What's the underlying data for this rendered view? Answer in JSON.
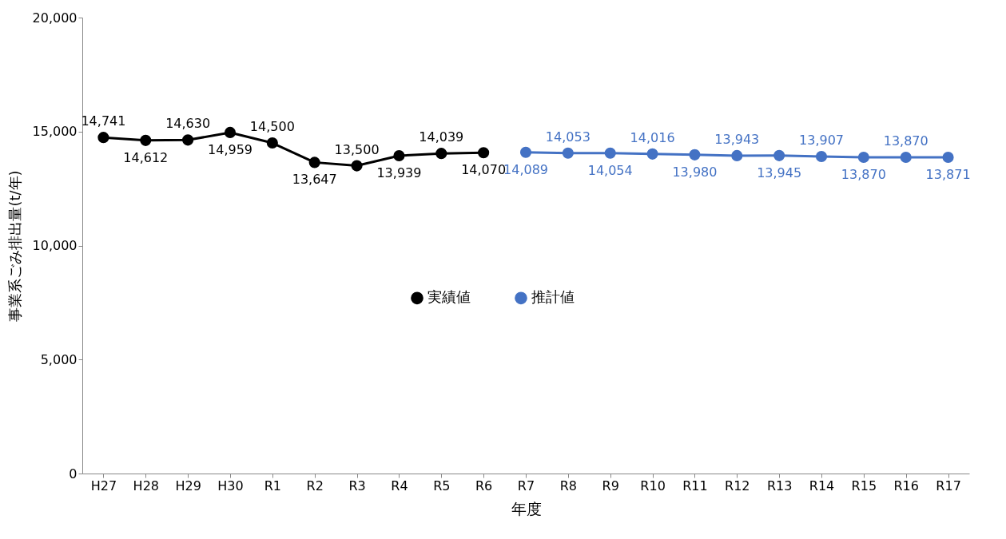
{
  "chart_data": {
    "type": "line",
    "xlabel": "年度",
    "ylabel": "事業系ごみ排出量(t/年)",
    "categories": [
      "H27",
      "H28",
      "H29",
      "H30",
      "R1",
      "R2",
      "R3",
      "R4",
      "R5",
      "R6",
      "R7",
      "R8",
      "R9",
      "R10",
      "R11",
      "R12",
      "R13",
      "R14",
      "R15",
      "R16",
      "R17"
    ],
    "series": [
      {
        "name": "実績値",
        "color": "#000000",
        "values": [
          14741,
          14612,
          14630,
          14959,
          14500,
          13647,
          13500,
          13939,
          14039,
          14070,
          null,
          null,
          null,
          null,
          null,
          null,
          null,
          null,
          null,
          null,
          null
        ],
        "value_labels": [
          "14,741",
          "14,612",
          "14,630",
          "14,959",
          "14,500",
          "13,647",
          "13,500",
          "13,939",
          "14,039",
          "14,070",
          null,
          null,
          null,
          null,
          null,
          null,
          null,
          null,
          null,
          null,
          null
        ]
      },
      {
        "name": "推計値",
        "color": "#4472c4",
        "values": [
          null,
          null,
          null,
          null,
          null,
          null,
          null,
          null,
          null,
          null,
          14089,
          14053,
          14054,
          14016,
          13980,
          13943,
          13945,
          13907,
          13870,
          13870,
          13871
        ],
        "value_labels": [
          null,
          null,
          null,
          null,
          null,
          null,
          null,
          null,
          null,
          null,
          "14,089",
          "14,053",
          "14,054",
          "14,016",
          "13,980",
          "13,943",
          "13,945",
          "13,907",
          "13,870",
          "13,870",
          "13,871"
        ]
      }
    ],
    "ylim": [
      0,
      20000
    ],
    "yticks": [
      0,
      {
        "value": 5000,
        "label": "5,000"
      },
      {
        "value": 10000,
        "label": "10,000"
      },
      {
        "value": 15000,
        "label": "15,000"
      },
      {
        "value": 20000,
        "label": "20,000"
      }
    ],
    "grid": false,
    "legend": "center",
    "marker": "circle",
    "line_style": "solid"
  }
}
